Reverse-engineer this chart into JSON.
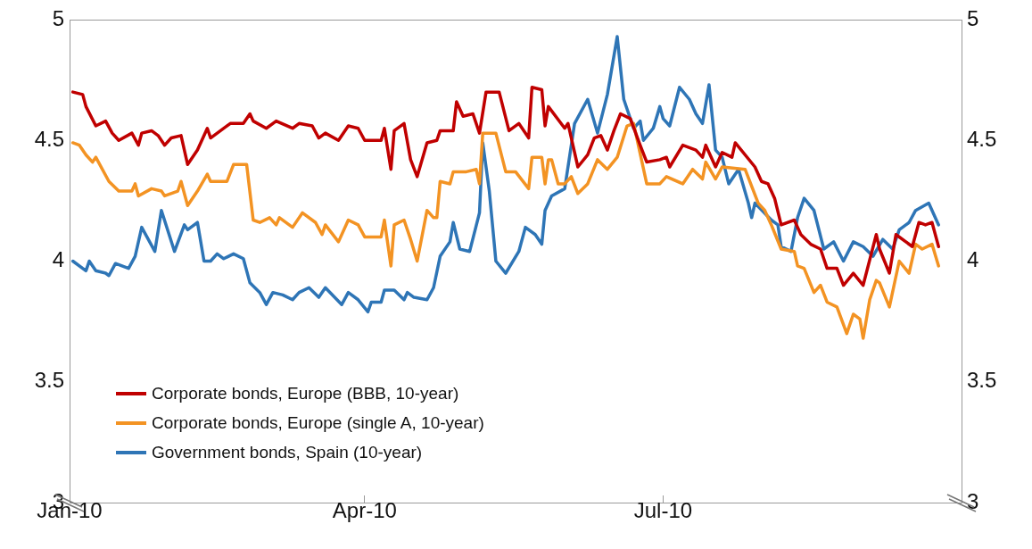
{
  "chart_data": {
    "type": "line",
    "xlim": [
      "2010-01-01",
      "2010-09-30"
    ],
    "xticks": [
      {
        "value": "2010-01-01",
        "label": "Jan-10"
      },
      {
        "value": "2010-04-01",
        "label": "Apr-10"
      },
      {
        "value": "2010-07-01",
        "label": "Jul-10"
      }
    ],
    "ylim": [
      3,
      5
    ],
    "yticks": [
      3,
      3.5,
      4,
      4.5,
      5
    ],
    "y2lim": [
      3,
      5
    ],
    "y2ticks": [
      3,
      3.5,
      4,
      4.5,
      5
    ],
    "grid": false,
    "legend": "bottom left",
    "marker": "none",
    "line_style": "solid",
    "series": [
      {
        "name": "Corporate bonds, Europe (BBB, 10-year)",
        "color": "#c00000",
        "x": [
          "2010-01-02",
          "2010-01-05",
          "2010-01-06",
          "2010-01-09",
          "2010-01-12",
          "2010-01-14",
          "2010-01-16",
          "2010-01-20",
          "2010-01-22",
          "2010-01-23",
          "2010-01-26",
          "2010-01-28",
          "2010-01-30",
          "2010-02-01",
          "2010-02-04",
          "2010-02-06",
          "2010-02-09",
          "2010-02-12",
          "2010-02-13",
          "2010-02-19",
          "2010-02-23",
          "2010-02-25",
          "2010-02-26",
          "2010-03-02",
          "2010-03-05",
          "2010-03-10",
          "2010-03-12",
          "2010-03-16",
          "2010-03-18",
          "2010-03-20",
          "2010-03-24",
          "2010-03-27",
          "2010-03-30",
          "2010-04-01",
          "2010-04-06",
          "2010-04-07",
          "2010-04-09",
          "2010-04-10",
          "2010-04-13",
          "2010-04-15",
          "2010-04-17",
          "2010-04-20",
          "2010-04-23",
          "2010-04-24",
          "2010-04-28",
          "2010-04-29",
          "2010-05-01",
          "2010-05-04",
          "2010-05-06",
          "2010-05-08",
          "2010-05-12",
          "2010-05-15",
          "2010-05-18",
          "2010-05-21",
          "2010-05-22",
          "2010-05-25",
          "2010-05-26",
          "2010-05-27",
          "2010-06-01",
          "2010-06-02",
          "2010-06-05",
          "2010-06-08",
          "2010-06-10",
          "2010-06-12",
          "2010-06-14",
          "2010-06-16",
          "2010-06-18",
          "2010-06-21",
          "2010-06-24",
          "2010-06-26",
          "2010-06-30",
          "2010-07-02",
          "2010-07-03",
          "2010-07-07",
          "2010-07-11",
          "2010-07-13",
          "2010-07-14",
          "2010-07-17",
          "2010-07-19",
          "2010-07-22",
          "2010-07-23",
          "2010-07-29",
          "2010-07-31",
          "2010-08-02",
          "2010-08-04",
          "2010-08-06",
          "2010-08-10",
          "2010-08-12",
          "2010-08-15",
          "2010-08-18",
          "2010-08-20",
          "2010-08-23",
          "2010-08-25",
          "2010-08-28",
          "2010-08-31",
          "2010-09-04",
          "2010-09-05",
          "2010-09-08",
          "2010-09-10",
          "2010-09-15",
          "2010-09-17",
          "2010-09-19",
          "2010-09-21",
          "2010-09-23"
        ],
        "values": [
          4.7,
          4.69,
          4.64,
          4.56,
          4.58,
          4.53,
          4.5,
          4.53,
          4.48,
          4.53,
          4.54,
          4.52,
          4.48,
          4.51,
          4.52,
          4.4,
          4.46,
          4.55,
          4.51,
          4.57,
          4.57,
          4.61,
          4.58,
          4.55,
          4.58,
          4.55,
          4.57,
          4.56,
          4.51,
          4.53,
          4.5,
          4.56,
          4.55,
          4.5,
          4.5,
          4.55,
          4.38,
          4.54,
          4.57,
          4.42,
          4.35,
          4.49,
          4.5,
          4.54,
          4.54,
          4.66,
          4.6,
          4.61,
          4.53,
          4.7,
          4.7,
          4.54,
          4.57,
          4.51,
          4.72,
          4.71,
          4.56,
          4.64,
          4.55,
          4.57,
          4.39,
          4.44,
          4.51,
          4.52,
          4.46,
          4.54,
          4.61,
          4.59,
          4.48,
          4.41,
          4.42,
          4.43,
          4.39,
          4.48,
          4.46,
          4.43,
          4.48,
          4.39,
          4.45,
          4.43,
          4.49,
          4.39,
          4.33,
          4.32,
          4.26,
          4.15,
          4.17,
          4.11,
          4.07,
          4.05,
          3.97,
          3.97,
          3.9,
          3.95,
          3.9,
          4.11,
          4.05,
          3.95,
          4.11,
          4.06,
          4.16,
          4.15,
          4.16,
          4.06
        ]
      },
      {
        "name": "Corporate bonds, Europe (single A, 10-year)",
        "color": "#f39323",
        "x": [
          "2010-01-02",
          "2010-01-04",
          "2010-01-06",
          "2010-01-08",
          "2010-01-09",
          "2010-01-13",
          "2010-01-16",
          "2010-01-20",
          "2010-01-21",
          "2010-01-22",
          "2010-01-26",
          "2010-01-29",
          "2010-01-30",
          "2010-02-03",
          "2010-02-04",
          "2010-02-06",
          "2010-02-09",
          "2010-02-12",
          "2010-02-13",
          "2010-02-18",
          "2010-02-20",
          "2010-02-24",
          "2010-02-26",
          "2010-02-28",
          "2010-03-03",
          "2010-03-05",
          "2010-03-06",
          "2010-03-10",
          "2010-03-13",
          "2010-03-17",
          "2010-03-19",
          "2010-03-20",
          "2010-03-24",
          "2010-03-27",
          "2010-03-30",
          "2010-04-01",
          "2010-04-06",
          "2010-04-07",
          "2010-04-09",
          "2010-04-10",
          "2010-04-13",
          "2010-04-15",
          "2010-04-17",
          "2010-04-20",
          "2010-04-22",
          "2010-04-23",
          "2010-04-24",
          "2010-04-27",
          "2010-04-28",
          "2010-05-02",
          "2010-05-05",
          "2010-05-06",
          "2010-05-07",
          "2010-05-11",
          "2010-05-14",
          "2010-05-17",
          "2010-05-21",
          "2010-05-22",
          "2010-05-25",
          "2010-05-26",
          "2010-05-27",
          "2010-05-28",
          "2010-05-30",
          "2010-06-01",
          "2010-06-03",
          "2010-06-05",
          "2010-06-08",
          "2010-06-11",
          "2010-06-14",
          "2010-06-17",
          "2010-06-20",
          "2010-06-22",
          "2010-06-26",
          "2010-06-30",
          "2010-07-02",
          "2010-07-07",
          "2010-07-10",
          "2010-07-13",
          "2010-07-14",
          "2010-07-17",
          "2010-07-19",
          "2010-07-26",
          "2010-07-30",
          "2010-08-01",
          "2010-08-03",
          "2010-08-06",
          "2010-08-10",
          "2010-08-11",
          "2010-08-13",
          "2010-08-16",
          "2010-08-18",
          "2010-08-20",
          "2010-08-23",
          "2010-08-26",
          "2010-08-28",
          "2010-08-30",
          "2010-08-31",
          "2010-09-02",
          "2010-09-04",
          "2010-09-05",
          "2010-09-08",
          "2010-09-11",
          "2010-09-14",
          "2010-09-16",
          "2010-09-18",
          "2010-09-21",
          "2010-09-23"
        ],
        "values": [
          4.49,
          4.48,
          4.44,
          4.41,
          4.43,
          4.33,
          4.29,
          4.29,
          4.32,
          4.27,
          4.3,
          4.29,
          4.27,
          4.29,
          4.33,
          4.23,
          4.29,
          4.36,
          4.33,
          4.33,
          4.4,
          4.4,
          4.17,
          4.16,
          4.18,
          4.15,
          4.18,
          4.14,
          4.2,
          4.16,
          4.11,
          4.15,
          4.08,
          4.17,
          4.15,
          4.1,
          4.1,
          4.17,
          3.98,
          4.15,
          4.17,
          4.09,
          4.0,
          4.21,
          4.18,
          4.18,
          4.33,
          4.32,
          4.37,
          4.37,
          4.38,
          4.32,
          4.53,
          4.53,
          4.37,
          4.37,
          4.3,
          4.43,
          4.43,
          4.32,
          4.42,
          4.42,
          4.32,
          4.32,
          4.35,
          4.28,
          4.32,
          4.42,
          4.38,
          4.43,
          4.56,
          4.57,
          4.32,
          4.32,
          4.35,
          4.32,
          4.38,
          4.34,
          4.41,
          4.34,
          4.39,
          4.38,
          4.24,
          4.21,
          4.15,
          4.05,
          4.04,
          3.98,
          3.97,
          3.87,
          3.9,
          3.83,
          3.81,
          3.7,
          3.78,
          3.76,
          3.68,
          3.84,
          3.92,
          3.91,
          3.81,
          4.0,
          3.95,
          4.07,
          4.05,
          4.07,
          3.98
        ]
      },
      {
        "name": "Government bonds, Spain (10-year)",
        "color": "#2e75b6",
        "x": [
          "2010-01-02",
          "2010-01-06",
          "2010-01-07",
          "2010-01-09",
          "2010-01-12",
          "2010-01-13",
          "2010-01-15",
          "2010-01-19",
          "2010-01-21",
          "2010-01-23",
          "2010-01-27",
          "2010-01-29",
          "2010-02-02",
          "2010-02-05",
          "2010-02-06",
          "2010-02-09",
          "2010-02-11",
          "2010-02-13",
          "2010-02-15",
          "2010-02-17",
          "2010-02-20",
          "2010-02-23",
          "2010-02-25",
          "2010-02-28",
          "2010-03-02",
          "2010-03-04",
          "2010-03-07",
          "2010-03-10",
          "2010-03-12",
          "2010-03-15",
          "2010-03-18",
          "2010-03-20",
          "2010-03-25",
          "2010-03-27",
          "2010-03-30",
          "2010-04-02",
          "2010-04-03",
          "2010-04-06",
          "2010-04-07",
          "2010-04-10",
          "2010-04-13",
          "2010-04-14",
          "2010-04-16",
          "2010-04-20",
          "2010-04-22",
          "2010-04-24",
          "2010-04-27",
          "2010-04-28",
          "2010-04-30",
          "2010-05-03",
          "2010-05-06",
          "2010-05-07",
          "2010-05-09",
          "2010-05-11",
          "2010-05-14",
          "2010-05-18",
          "2010-05-20",
          "2010-05-23",
          "2010-05-25",
          "2010-05-26",
          "2010-05-28",
          "2010-06-01",
          "2010-06-04",
          "2010-06-08",
          "2010-06-11",
          "2010-06-14",
          "2010-06-17",
          "2010-06-19",
          "2010-06-22",
          "2010-06-24",
          "2010-06-25",
          "2010-06-28",
          "2010-06-30",
          "2010-07-01",
          "2010-07-03",
          "2010-07-06",
          "2010-07-09",
          "2010-07-11",
          "2010-07-13",
          "2010-07-15",
          "2010-07-17",
          "2010-07-19",
          "2010-07-21",
          "2010-07-24",
          "2010-07-27",
          "2010-07-28",
          "2010-07-29",
          "2010-08-03",
          "2010-08-05",
          "2010-08-06",
          "2010-08-09",
          "2010-08-11",
          "2010-08-13",
          "2010-08-16",
          "2010-08-19",
          "2010-08-22",
          "2010-08-25",
          "2010-08-28",
          "2010-08-31",
          "2010-09-03",
          "2010-09-06",
          "2010-09-09",
          "2010-09-11",
          "2010-09-14",
          "2010-09-16",
          "2010-09-20",
          "2010-09-23"
        ],
        "values": [
          4.0,
          3.96,
          4.0,
          3.96,
          3.95,
          3.94,
          3.99,
          3.97,
          4.02,
          4.14,
          4.04,
          4.21,
          4.04,
          4.15,
          4.13,
          4.16,
          4.0,
          4.0,
          4.03,
          4.01,
          4.03,
          4.01,
          3.91,
          3.87,
          3.82,
          3.87,
          3.86,
          3.84,
          3.87,
          3.89,
          3.85,
          3.89,
          3.82,
          3.87,
          3.84,
          3.79,
          3.83,
          3.83,
          3.88,
          3.88,
          3.84,
          3.87,
          3.85,
          3.84,
          3.89,
          4.02,
          4.08,
          4.16,
          4.05,
          4.04,
          4.2,
          4.49,
          4.29,
          4.0,
          3.95,
          4.04,
          4.14,
          4.11,
          4.07,
          4.21,
          4.27,
          4.3,
          4.57,
          4.67,
          4.53,
          4.69,
          4.93,
          4.67,
          4.55,
          4.58,
          4.5,
          4.55,
          4.64,
          4.59,
          4.56,
          4.72,
          4.67,
          4.61,
          4.57,
          4.73,
          4.46,
          4.43,
          4.32,
          4.38,
          4.24,
          4.18,
          4.24,
          4.17,
          4.15,
          4.06,
          4.04,
          4.18,
          4.26,
          4.21,
          4.05,
          4.08,
          4.0,
          4.08,
          4.06,
          4.02,
          4.09,
          4.05,
          4.13,
          4.16,
          4.21,
          4.24,
          4.15
        ]
      }
    ]
  }
}
